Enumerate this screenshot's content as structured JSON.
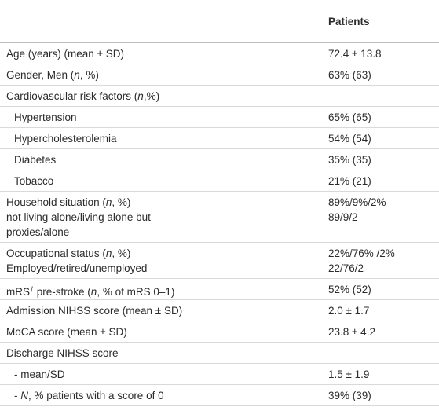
{
  "table": {
    "header": [
      "",
      "Patients"
    ],
    "rows": [
      {
        "label": [
          [
            "Age (years) (mean ± SD)"
          ]
        ],
        "value": [
          "72.4 ± 13.8"
        ]
      },
      {
        "label": [
          [
            "Gender, Men (",
            {
              "text": "n",
              "style": "italic"
            },
            ", %)"
          ]
        ],
        "value": [
          "63% (63)"
        ]
      },
      {
        "label": [
          [
            "Cardiovascular risk factors (",
            {
              "text": "n",
              "style": "italic"
            },
            ",%)"
          ]
        ],
        "value": []
      },
      {
        "label": [
          [
            "Hypertension"
          ]
        ],
        "value": [
          "65% (65)"
        ],
        "indent": true
      },
      {
        "label": [
          [
            "Hypercholesterolemia"
          ]
        ],
        "value": [
          "54% (54)"
        ],
        "indent": true
      },
      {
        "label": [
          [
            "Diabetes"
          ]
        ],
        "value": [
          "35% (35)"
        ],
        "indent": true
      },
      {
        "label": [
          [
            "Tobacco"
          ]
        ],
        "value": [
          "21% (21)"
        ],
        "indent": true
      },
      {
        "label": [
          [
            "Household situation (",
            {
              "text": "n",
              "style": "italic"
            },
            ", %)"
          ],
          [
            "not living alone/living alone but"
          ],
          [
            "proxies/alone"
          ]
        ],
        "value": [
          "89%/9%/2%",
          "89/9/2"
        ]
      },
      {
        "label": [
          [
            "Occupational status (",
            {
              "text": "n",
              "style": "italic"
            },
            ", %)"
          ],
          [
            "Employed/retired/unemployed"
          ]
        ],
        "value": [
          "22%/76% /2%",
          "22/76/2"
        ]
      },
      {
        "label": [
          [
            "mRS",
            {
              "text": "†",
              "style": "sup-italic"
            },
            " pre-stroke (",
            {
              "text": "n",
              "style": "italic"
            },
            ", % of mRS 0–1)"
          ]
        ],
        "value": [
          "52% (52)"
        ]
      },
      {
        "label": [
          [
            "Admission NIHSS score (mean ± SD)"
          ]
        ],
        "value": [
          "2.0 ± 1.7"
        ]
      },
      {
        "label": [
          [
            "MoCA score (mean ± SD)"
          ]
        ],
        "value": [
          "23.8 ± 4.2"
        ]
      },
      {
        "label": [
          [
            "Discharge NIHSS score"
          ]
        ],
        "value": []
      },
      {
        "label": [
          [
            "- mean/SD"
          ]
        ],
        "value": [
          "1.5 ± 1.9"
        ],
        "indent": true
      },
      {
        "label": [
          [
            "- ",
            {
              "text": "N",
              "style": "italic"
            },
            ", % patients with a score of 0"
          ]
        ],
        "value": [
          "39% (39)"
        ],
        "indent": true
      }
    ]
  }
}
